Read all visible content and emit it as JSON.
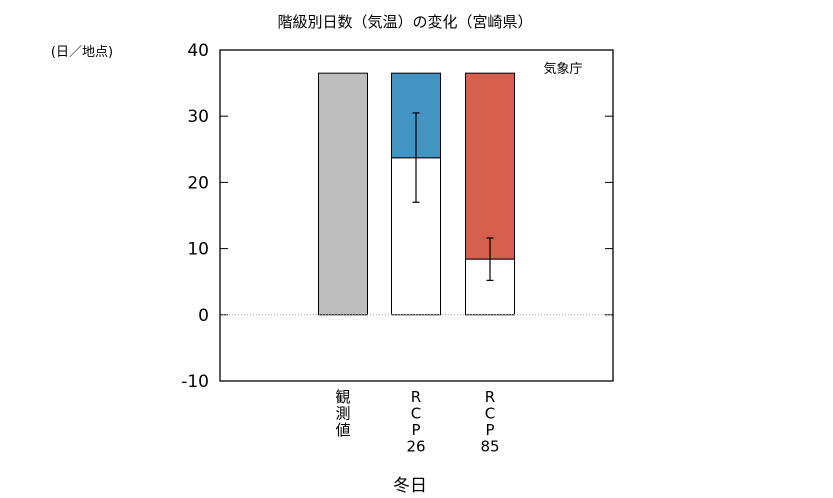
{
  "chart_data": {
    "type": "bar",
    "title": "階級別日数（気温）の変化（宮崎県）",
    "ylabel": "(日／地点)",
    "xlabel": "冬日",
    "source": "気象庁",
    "ylim": [
      -10,
      40
    ],
    "yticks": [
      -10,
      0,
      10,
      20,
      30,
      40
    ],
    "categories": [
      {
        "id": "obs",
        "lines": [
          "観",
          "測",
          "値"
        ]
      },
      {
        "id": "rcp26",
        "lines": [
          "R",
          "C",
          "P",
          "26"
        ]
      },
      {
        "id": "rcp85",
        "lines": [
          "R",
          "C",
          "P",
          "85"
        ]
      }
    ],
    "series": [
      {
        "category": "obs",
        "present": 36.5,
        "future": null,
        "error_low": null,
        "error_high": null
      },
      {
        "category": "rcp26",
        "present": 36.5,
        "future": 23.7,
        "error_low": 17.0,
        "error_high": 30.5
      },
      {
        "category": "rcp85",
        "present": 36.5,
        "future": 8.4,
        "error_low": 5.2,
        "error_high": 11.6
      }
    ],
    "colors": {
      "observed": "#bebebe",
      "rcp26_change": "#4393c3",
      "rcp85_change": "#d6604d",
      "future_fill": "#ffffff",
      "zero_line": "#999999"
    },
    "zero_line": "dotted",
    "grid": false
  }
}
